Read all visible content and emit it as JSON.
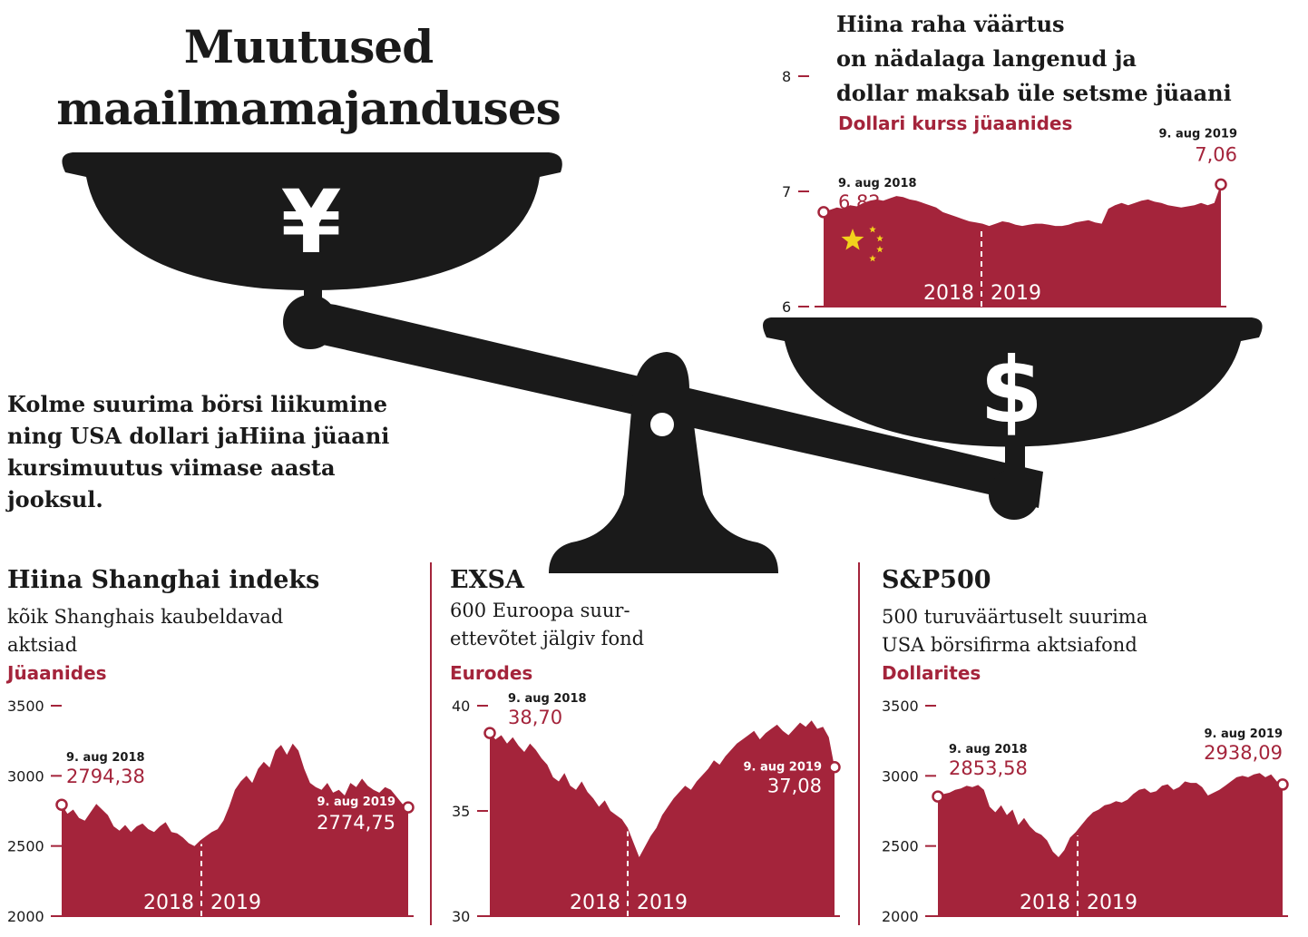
{
  "title": {
    "line1": "Muutused",
    "line2": "maailmamajanduses"
  },
  "intro": {
    "line1": "Kolme suurima börsi liikumine",
    "line2": "ning USA dollari jaHiina jüaani",
    "line3": "kursimuutus viimase aasta jooksul."
  },
  "scale": {
    "left_symbol": "¥",
    "right_symbol": "$"
  },
  "colors": {
    "accent": "#a4243b",
    "scale": "#1a1a1a",
    "flag_star": "#f2d21c"
  },
  "yuan_chart": {
    "heading": {
      "line1": "Hiina raha väärtus",
      "line2": "on nädalaga langenud ja",
      "line3": "dollar maksab üle setsme jüaani"
    },
    "unit": "Dollari kurss jüaanides"
  },
  "shanghai_chart": {
    "heading": "Hiina Shanghai indeks",
    "sub": {
      "line1": "kõik Shanghais kaubeldavad",
      "line2": "aktsiad"
    },
    "unit": "Jüaanides"
  },
  "exsa_chart": {
    "heading": "EXSA",
    "sub": {
      "line1": "600 Euroopa suur-",
      "line2": "ettevõtet jälgiv fond"
    },
    "unit": "Eurodes"
  },
  "sp500_chart": {
    "heading": "S&P500",
    "sub": {
      "line1": "500 turuväärtuselt suurima",
      "line2": "USA börsifirma aktsiafond"
    },
    "unit": "Dollarites"
  },
  "chart_data": [
    {
      "id": "yuan",
      "type": "area",
      "ylim": [
        6,
        8
      ],
      "yticks": [
        "6",
        "7",
        "8"
      ],
      "period_labels": [
        "2018",
        "2019"
      ],
      "start": {
        "date": "9. aug 2018",
        "value": 6.82,
        "label": "6,82"
      },
      "end": {
        "date": "9. aug 2019",
        "value": 7.06,
        "label": "7,06"
      },
      "series": [
        {
          "values": [
            6.82,
            6.84,
            6.86,
            6.85,
            6.88,
            6.87,
            6.9,
            6.92,
            6.93,
            6.92,
            6.94,
            6.96,
            6.95,
            6.93,
            6.92,
            6.9,
            6.88,
            6.86,
            6.82,
            6.8,
            6.78,
            6.76,
            6.74,
            6.73,
            6.72,
            6.7,
            6.72,
            6.74,
            6.73,
            6.71,
            6.7,
            6.71,
            6.72,
            6.72,
            6.71,
            6.7,
            6.7,
            6.71,
            6.73,
            6.74,
            6.75,
            6.73,
            6.72,
            6.85,
            6.88,
            6.9,
            6.88,
            6.9,
            6.92,
            6.93,
            6.91,
            6.9,
            6.88,
            6.87,
            6.86,
            6.87,
            6.88,
            6.9,
            6.88,
            6.9,
            7.06
          ]
        }
      ]
    },
    {
      "id": "shanghai",
      "type": "area",
      "ylim": [
        2000,
        3500
      ],
      "yticks": [
        "2000",
        "2500",
        "3000",
        "3500"
      ],
      "period_labels": [
        "2018",
        "2019"
      ],
      "start": {
        "date": "9. aug 2018",
        "value": 2794.38,
        "label": "2794,38"
      },
      "end": {
        "date": "9. aug 2019",
        "value": 2774.75,
        "label": "2774,75"
      },
      "series": [
        {
          "values": [
            2794,
            2730,
            2760,
            2700,
            2680,
            2740,
            2800,
            2760,
            2720,
            2640,
            2610,
            2650,
            2600,
            2640,
            2660,
            2620,
            2600,
            2640,
            2670,
            2600,
            2590,
            2560,
            2520,
            2500,
            2540,
            2570,
            2600,
            2620,
            2680,
            2780,
            2900,
            2960,
            3000,
            2950,
            3050,
            3100,
            3060,
            3180,
            3220,
            3150,
            3230,
            3180,
            3050,
            2950,
            2920,
            2900,
            2950,
            2880,
            2900,
            2860,
            2950,
            2920,
            2980,
            2930,
            2900,
            2880,
            2920,
            2900,
            2850,
            2800,
            2775
          ]
        }
      ]
    },
    {
      "id": "exsa",
      "type": "area",
      "ylim": [
        30,
        40
      ],
      "yticks": [
        "30",
        "35",
        "40"
      ],
      "period_labels": [
        "2018",
        "2019"
      ],
      "start": {
        "date": "9. aug 2018",
        "value": 38.7,
        "label": "38,70"
      },
      "end": {
        "date": "9. aug 2019",
        "value": 37.08,
        "label": "37,08"
      },
      "series": [
        {
          "values": [
            38.7,
            38.4,
            38.6,
            38.2,
            38.5,
            38.1,
            37.8,
            38.2,
            37.9,
            37.5,
            37.2,
            36.6,
            36.4,
            36.8,
            36.2,
            36.0,
            36.4,
            35.9,
            35.6,
            35.2,
            35.5,
            35.0,
            34.8,
            34.6,
            34.2,
            33.5,
            32.8,
            33.3,
            33.8,
            34.2,
            34.8,
            35.2,
            35.6,
            35.9,
            36.2,
            36.0,
            36.4,
            36.7,
            37.0,
            37.4,
            37.2,
            37.6,
            37.9,
            38.2,
            38.4,
            38.6,
            38.8,
            38.4,
            38.7,
            38.9,
            39.1,
            38.8,
            38.6,
            38.9,
            39.2,
            39.0,
            39.3,
            38.9,
            39.0,
            38.5,
            37.08
          ]
        }
      ]
    },
    {
      "id": "sp500",
      "type": "area",
      "ylim": [
        2000,
        3500
      ],
      "yticks": [
        "2000",
        "2500",
        "3000",
        "3500"
      ],
      "period_labels": [
        "2018",
        "2019"
      ],
      "start": {
        "date": "9. aug 2018",
        "value": 2853.58,
        "label": "2853,58"
      },
      "end": {
        "date": "9. aug 2019",
        "value": 2938.09,
        "label": "2938,09"
      },
      "series": [
        {
          "values": [
            2853,
            2870,
            2880,
            2900,
            2910,
            2930,
            2920,
            2935,
            2900,
            2780,
            2740,
            2790,
            2720,
            2760,
            2650,
            2700,
            2640,
            2600,
            2580,
            2540,
            2460,
            2420,
            2470,
            2560,
            2600,
            2650,
            2700,
            2740,
            2760,
            2790,
            2800,
            2820,
            2810,
            2830,
            2870,
            2900,
            2910,
            2880,
            2890,
            2930,
            2940,
            2900,
            2920,
            2960,
            2950,
            2950,
            2920,
            2860,
            2880,
            2900,
            2930,
            2960,
            2990,
            3000,
            2990,
            3010,
            3020,
            2990,
            3010,
            2960,
            2938
          ]
        }
      ]
    }
  ]
}
